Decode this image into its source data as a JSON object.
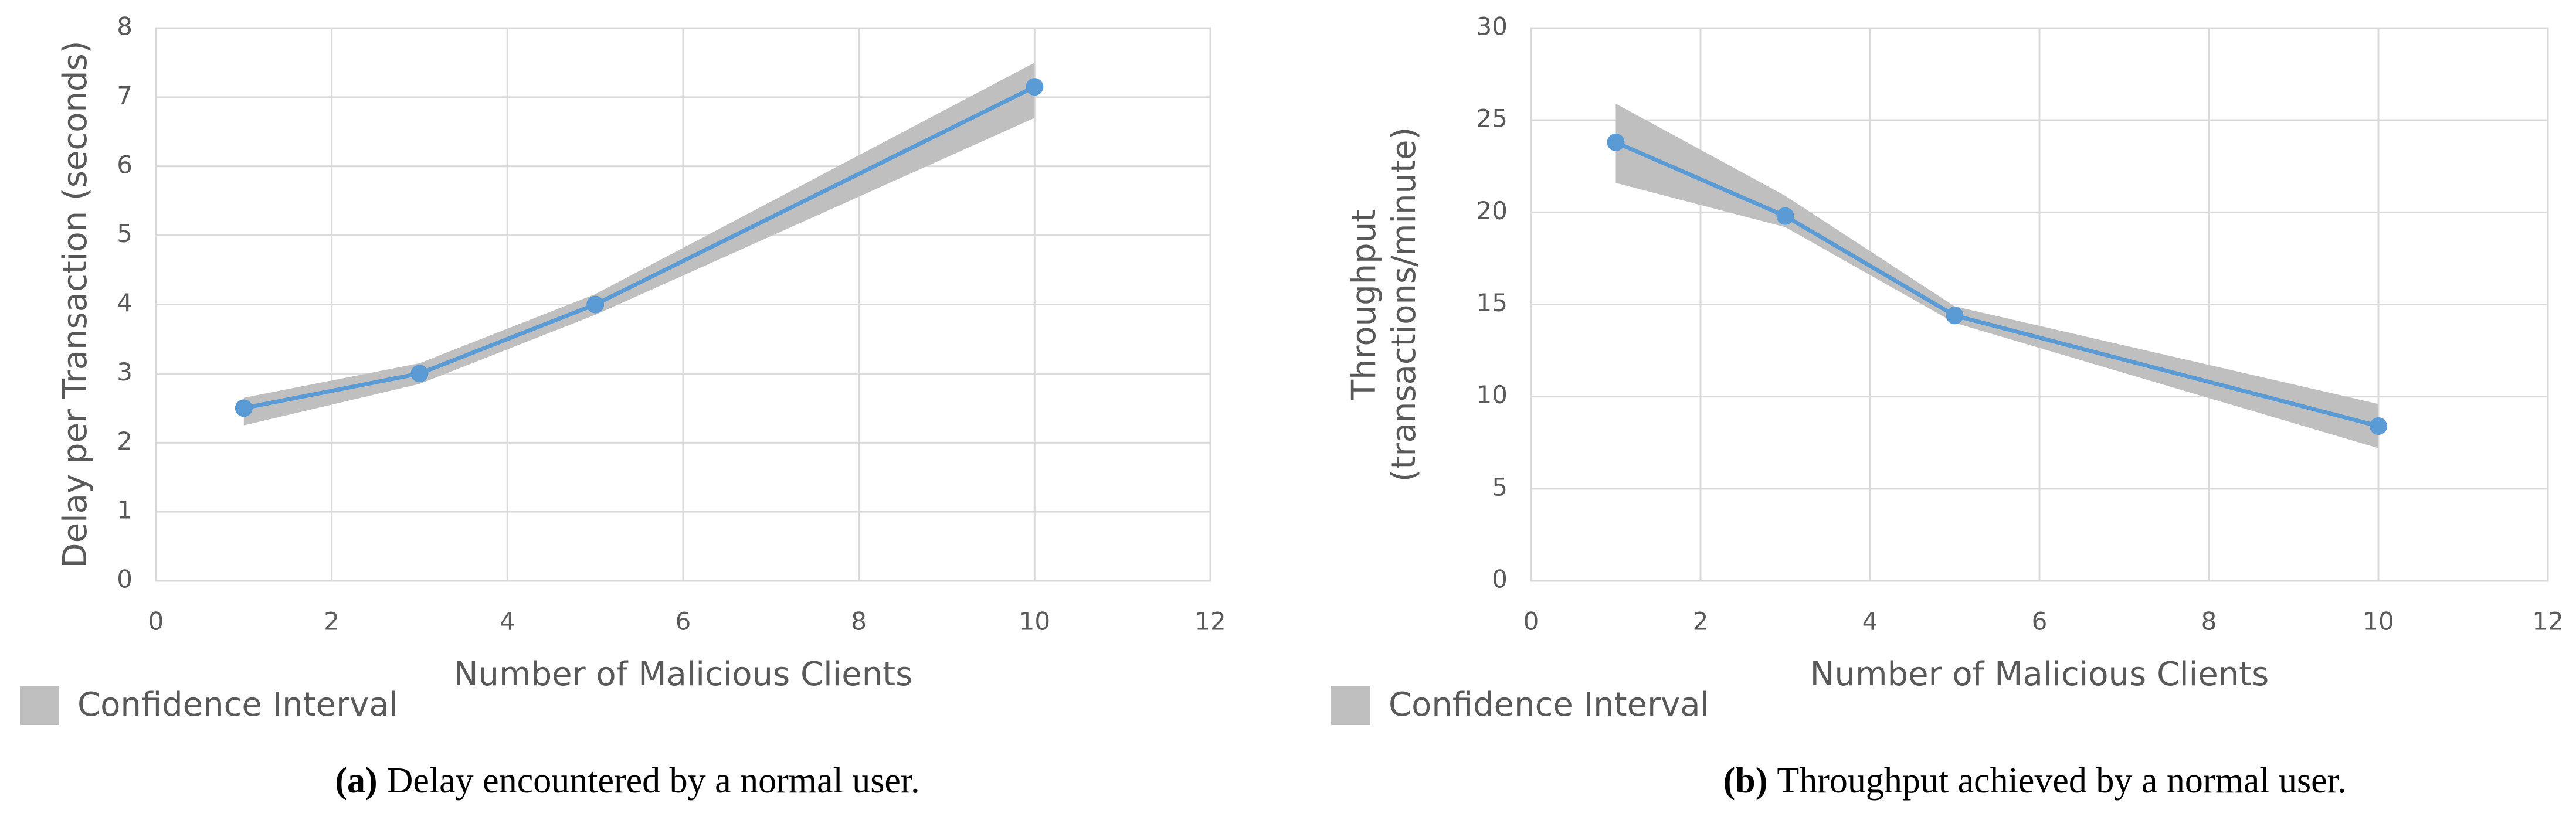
{
  "chart_data": [
    {
      "type": "line",
      "caption_label": "(a)",
      "caption": "Delay encountered by a normal user.",
      "x_label": "Number of Malicious Clients",
      "y_label": [
        "Delay per Transaction  (seconds)"
      ],
      "x": [
        1,
        3,
        5,
        10
      ],
      "series": [
        {
          "color": "#5b9bd5",
          "values": [
            2.5,
            3.0,
            4.0,
            7.15
          ]
        }
      ],
      "band": {
        "name": "Confidence Interval",
        "color": "#bfbfbf",
        "lower": [
          2.25,
          2.85,
          3.85,
          6.7
        ],
        "upper": [
          2.65,
          3.15,
          4.15,
          7.5
        ]
      },
      "xlim": [
        0,
        12
      ],
      "xticks": [
        0,
        2,
        4,
        6,
        8,
        10,
        12
      ],
      "ylim": [
        0,
        8
      ],
      "yticks": [
        0,
        1,
        2,
        3,
        4,
        5,
        6,
        7,
        8
      ],
      "grid": true
    },
    {
      "type": "line",
      "caption_label": "(b)",
      "caption": "Throughput achieved by a normal user.",
      "x_label": "Number of Malicious Clients",
      "y_label": [
        "Throughput",
        "(transactions/minute)"
      ],
      "x": [
        1,
        3,
        5,
        10
      ],
      "series": [
        {
          "color": "#5b9bd5",
          "values": [
            23.8,
            19.8,
            14.4,
            8.4
          ]
        }
      ],
      "band": {
        "name": "Confidence Interval",
        "color": "#bfbfbf",
        "lower": [
          21.6,
          19.2,
          14.0,
          7.2
        ],
        "upper": [
          25.9,
          20.9,
          14.9,
          9.6
        ]
      },
      "xlim": [
        0,
        12
      ],
      "xticks": [
        0,
        2,
        4,
        6,
        8,
        10,
        12
      ],
      "ylim": [
        0,
        30
      ],
      "yticks": [
        0,
        5,
        10,
        15,
        20,
        25,
        30
      ],
      "grid": true
    }
  ]
}
